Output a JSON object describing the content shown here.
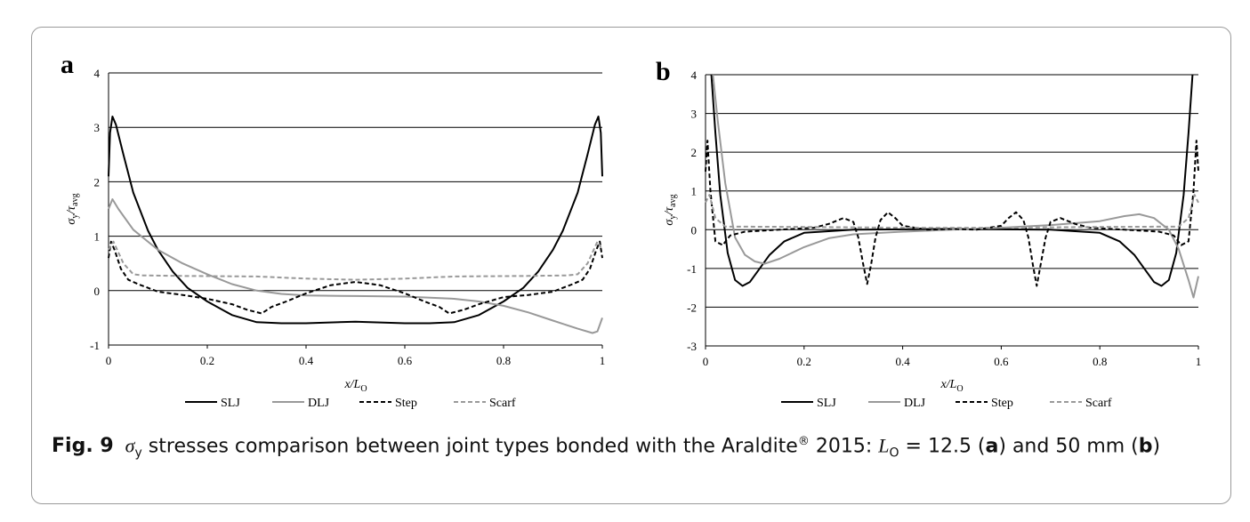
{
  "caption": {
    "label": "Fig. 9",
    "sigma": "σ",
    "sigma_sub": "y",
    "text1": " stresses comparison between joint types bonded with the Araldite",
    "reg": "®",
    "text2": " 2015: ",
    "L": "L",
    "L_sub": "O",
    "eq": " = 12.5 (",
    "a": "a",
    "mid": ") and 50 mm (",
    "b": "b",
    "end": ")"
  },
  "chart_data": [
    {
      "panel": "a",
      "type": "line",
      "xlabel": "x/L",
      "xlabel_sub": "O",
      "ylabel": "σ",
      "ylabel_sub1": "y",
      "ylabel_mid": "/τ",
      "ylabel_sub2": "avg",
      "xlim": [
        0,
        1
      ],
      "ylim": [
        -1,
        4
      ],
      "xticks": [
        "0",
        "0.2",
        "0.4",
        "0.6",
        "0.8",
        "1"
      ],
      "yticks": [
        "-1",
        "0",
        "1",
        "2",
        "3",
        "4"
      ],
      "grid": "horizontal",
      "legend_position": "bottom",
      "series": [
        {
          "name": "SLJ",
          "color": "#000000",
          "dash": "solid",
          "points": [
            [
              0,
              2.1
            ],
            [
              0.003,
              2.9
            ],
            [
              0.008,
              3.2
            ],
            [
              0.015,
              3.05
            ],
            [
              0.03,
              2.5
            ],
            [
              0.05,
              1.8
            ],
            [
              0.08,
              1.1
            ],
            [
              0.1,
              0.75
            ],
            [
              0.13,
              0.35
            ],
            [
              0.16,
              0.05
            ],
            [
              0.2,
              -0.2
            ],
            [
              0.25,
              -0.45
            ],
            [
              0.3,
              -0.58
            ],
            [
              0.35,
              -0.6
            ],
            [
              0.4,
              -0.6
            ],
            [
              0.5,
              -0.57
            ],
            [
              0.6,
              -0.6
            ],
            [
              0.65,
              -0.6
            ],
            [
              0.7,
              -0.58
            ],
            [
              0.75,
              -0.45
            ],
            [
              0.8,
              -0.2
            ],
            [
              0.84,
              0.05
            ],
            [
              0.87,
              0.35
            ],
            [
              0.9,
              0.75
            ],
            [
              0.92,
              1.1
            ],
            [
              0.95,
              1.8
            ],
            [
              0.97,
              2.5
            ],
            [
              0.985,
              3.05
            ],
            [
              0.992,
              3.2
            ],
            [
              0.997,
              2.9
            ],
            [
              1,
              2.1
            ]
          ]
        },
        {
          "name": "DLJ",
          "color": "#999999",
          "dash": "solid",
          "points": [
            [
              0,
              1.5
            ],
            [
              0.008,
              1.68
            ],
            [
              0.02,
              1.5
            ],
            [
              0.05,
              1.12
            ],
            [
              0.1,
              0.75
            ],
            [
              0.15,
              0.5
            ],
            [
              0.2,
              0.3
            ],
            [
              0.25,
              0.12
            ],
            [
              0.3,
              0
            ],
            [
              0.35,
              -0.06
            ],
            [
              0.4,
              -0.09
            ],
            [
              0.5,
              -0.1
            ],
            [
              0.6,
              -0.11
            ],
            [
              0.7,
              -0.15
            ],
            [
              0.75,
              -0.2
            ],
            [
              0.8,
              -0.28
            ],
            [
              0.85,
              -0.4
            ],
            [
              0.9,
              -0.55
            ],
            [
              0.95,
              -0.7
            ],
            [
              0.98,
              -0.78
            ],
            [
              0.99,
              -0.75
            ],
            [
              1,
              -0.5
            ]
          ]
        },
        {
          "name": "Step",
          "color": "#000000",
          "dash": "dashed",
          "points": [
            [
              0,
              0.6
            ],
            [
              0.005,
              0.9
            ],
            [
              0.012,
              0.75
            ],
            [
              0.025,
              0.4
            ],
            [
              0.04,
              0.2
            ],
            [
              0.06,
              0.12
            ],
            [
              0.08,
              0.05
            ],
            [
              0.1,
              -0.02
            ],
            [
              0.15,
              -0.08
            ],
            [
              0.2,
              -0.15
            ],
            [
              0.25,
              -0.25
            ],
            [
              0.28,
              -0.35
            ],
            [
              0.31,
              -0.42
            ],
            [
              0.33,
              -0.3
            ],
            [
              0.345,
              -0.25
            ],
            [
              0.36,
              -0.2
            ],
            [
              0.4,
              -0.05
            ],
            [
              0.45,
              0.1
            ],
            [
              0.5,
              0.16
            ],
            [
              0.55,
              0.1
            ],
            [
              0.6,
              -0.05
            ],
            [
              0.64,
              -0.2
            ],
            [
              0.655,
              -0.25
            ],
            [
              0.67,
              -0.3
            ],
            [
              0.69,
              -0.42
            ],
            [
              0.72,
              -0.35
            ],
            [
              0.75,
              -0.25
            ],
            [
              0.8,
              -0.12
            ],
            [
              0.85,
              -0.08
            ],
            [
              0.9,
              -0.02
            ],
            [
              0.92,
              0.05
            ],
            [
              0.94,
              0.12
            ],
            [
              0.96,
              0.2
            ],
            [
              0.975,
              0.4
            ],
            [
              0.988,
              0.75
            ],
            [
              0.995,
              0.9
            ],
            [
              1,
              0.6
            ]
          ]
        },
        {
          "name": "Scarf",
          "color": "#999999",
          "dash": "dashed",
          "points": [
            [
              0,
              0.75
            ],
            [
              0.01,
              0.9
            ],
            [
              0.03,
              0.5
            ],
            [
              0.05,
              0.3
            ],
            [
              0.07,
              0.28
            ],
            [
              0.15,
              0.27
            ],
            [
              0.3,
              0.26
            ],
            [
              0.4,
              0.22
            ],
            [
              0.5,
              0.2
            ],
            [
              0.6,
              0.22
            ],
            [
              0.7,
              0.26
            ],
            [
              0.85,
              0.27
            ],
            [
              0.93,
              0.28
            ],
            [
              0.95,
              0.3
            ],
            [
              0.97,
              0.5
            ],
            [
              0.99,
              0.9
            ],
            [
              1,
              0.75
            ]
          ]
        }
      ]
    },
    {
      "panel": "b",
      "type": "line",
      "xlabel": "x/L",
      "xlabel_sub": "O",
      "ylabel": "σ",
      "ylabel_sub1": "y",
      "ylabel_mid": "/τ",
      "ylabel_sub2": "avg",
      "xlim": [
        0,
        1
      ],
      "ylim": [
        -3,
        4
      ],
      "xticks": [
        "0",
        "0.2",
        "0.4",
        "0.6",
        "0.8",
        "1"
      ],
      "yticks": [
        "-3",
        "-2",
        "-1",
        "0",
        "1",
        "2",
        "3",
        "4"
      ],
      "grid": "horizontal",
      "legend_position": "bottom",
      "series": [
        {
          "name": "SLJ",
          "color": "#000000",
          "dash": "solid",
          "points": [
            [
              0.012,
              4
            ],
            [
              0.02,
              2.5
            ],
            [
              0.03,
              0.9
            ],
            [
              0.045,
              -0.6
            ],
            [
              0.06,
              -1.3
            ],
            [
              0.075,
              -1.45
            ],
            [
              0.09,
              -1.35
            ],
            [
              0.11,
              -1
            ],
            [
              0.13,
              -0.65
            ],
            [
              0.16,
              -0.3
            ],
            [
              0.2,
              -0.08
            ],
            [
              0.3,
              0
            ],
            [
              0.5,
              0.02
            ],
            [
              0.7,
              0
            ],
            [
              0.8,
              -0.08
            ],
            [
              0.84,
              -0.3
            ],
            [
              0.87,
              -0.65
            ],
            [
              0.89,
              -1
            ],
            [
              0.91,
              -1.35
            ],
            [
              0.925,
              -1.45
            ],
            [
              0.94,
              -1.3
            ],
            [
              0.955,
              -0.6
            ],
            [
              0.97,
              0.9
            ],
            [
              0.98,
              2.5
            ],
            [
              0.988,
              4
            ]
          ]
        },
        {
          "name": "DLJ",
          "color": "#999999",
          "dash": "solid",
          "points": [
            [
              0.015,
              4
            ],
            [
              0.025,
              2.8
            ],
            [
              0.04,
              1.2
            ],
            [
              0.06,
              -0.2
            ],
            [
              0.08,
              -0.65
            ],
            [
              0.1,
              -0.82
            ],
            [
              0.12,
              -0.88
            ],
            [
              0.15,
              -0.75
            ],
            [
              0.2,
              -0.45
            ],
            [
              0.25,
              -0.22
            ],
            [
              0.3,
              -0.12
            ],
            [
              0.4,
              -0.05
            ],
            [
              0.5,
              0
            ],
            [
              0.6,
              0.05
            ],
            [
              0.7,
              0.12
            ],
            [
              0.8,
              0.22
            ],
            [
              0.85,
              0.35
            ],
            [
              0.88,
              0.4
            ],
            [
              0.91,
              0.3
            ],
            [
              0.94,
              0
            ],
            [
              0.96,
              -0.5
            ],
            [
              0.98,
              -1.3
            ],
            [
              0.99,
              -1.75
            ],
            [
              1,
              -1.2
            ]
          ]
        },
        {
          "name": "Step",
          "color": "#000000",
          "dash": "dashed",
          "points": [
            [
              0,
              1.5
            ],
            [
              0.004,
              2.3
            ],
            [
              0.01,
              1
            ],
            [
              0.02,
              -0.3
            ],
            [
              0.035,
              -0.4
            ],
            [
              0.05,
              -0.15
            ],
            [
              0.08,
              -0.05
            ],
            [
              0.15,
              0
            ],
            [
              0.22,
              0.05
            ],
            [
              0.25,
              0.15
            ],
            [
              0.28,
              0.3
            ],
            [
              0.3,
              0.2
            ],
            [
              0.31,
              -0.2
            ],
            [
              0.32,
              -0.9
            ],
            [
              0.328,
              -1.4
            ],
            [
              0.336,
              -0.9
            ],
            [
              0.345,
              -0.2
            ],
            [
              0.355,
              0.25
            ],
            [
              0.37,
              0.45
            ],
            [
              0.385,
              0.3
            ],
            [
              0.4,
              0.1
            ],
            [
              0.45,
              0
            ],
            [
              0.5,
              0.02
            ],
            [
              0.55,
              0
            ],
            [
              0.6,
              0.1
            ],
            [
              0.615,
              0.3
            ],
            [
              0.63,
              0.45
            ],
            [
              0.645,
              0.25
            ],
            [
              0.655,
              -0.2
            ],
            [
              0.664,
              -0.9
            ],
            [
              0.672,
              -1.45
            ],
            [
              0.68,
              -0.9
            ],
            [
              0.69,
              -0.2
            ],
            [
              0.7,
              0.2
            ],
            [
              0.72,
              0.3
            ],
            [
              0.75,
              0.15
            ],
            [
              0.78,
              0.05
            ],
            [
              0.85,
              0
            ],
            [
              0.92,
              -0.05
            ],
            [
              0.95,
              -0.15
            ],
            [
              0.965,
              -0.4
            ],
            [
              0.98,
              -0.3
            ],
            [
              0.99,
              1
            ],
            [
              0.996,
              2.3
            ],
            [
              1,
              1.5
            ]
          ]
        },
        {
          "name": "Scarf",
          "color": "#999999",
          "dash": "dashed",
          "points": [
            [
              0,
              0.7
            ],
            [
              0.008,
              0.9
            ],
            [
              0.02,
              0.3
            ],
            [
              0.04,
              0.08
            ],
            [
              0.2,
              0.07
            ],
            [
              0.4,
              0.05
            ],
            [
              0.5,
              0.05
            ],
            [
              0.6,
              0.05
            ],
            [
              0.8,
              0.07
            ],
            [
              0.96,
              0.08
            ],
            [
              0.98,
              0.3
            ],
            [
              0.992,
              0.9
            ],
            [
              1,
              0.7
            ]
          ]
        }
      ]
    }
  ]
}
